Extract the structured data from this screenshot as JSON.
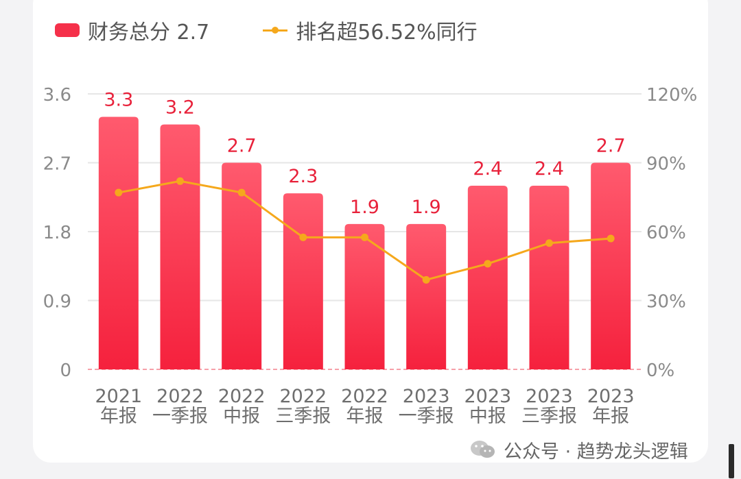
{
  "legend": {
    "bar_label": "财务总分 2.7",
    "line_label": "排名超56.52%同行"
  },
  "watermark": {
    "text": "公众号 · 趋势龙头逻辑",
    "icon": "wechat-icon"
  },
  "colors": {
    "bar_top": "#ff5a6e",
    "bar_bottom": "#f5213d",
    "line": "#f5a81c",
    "value_label": "#e8213a",
    "axis_text": "#8a8a8a",
    "grid": "#e6e6e6",
    "baseline": "#f6a0a8"
  },
  "chart_data": {
    "type": "bar",
    "categories": [
      [
        "2021",
        "年报"
      ],
      [
        "2022",
        "一季报"
      ],
      [
        "2022",
        "中报"
      ],
      [
        "2022",
        "三季报"
      ],
      [
        "2022",
        "年报"
      ],
      [
        "2023",
        "一季报"
      ],
      [
        "2023",
        "中报"
      ],
      [
        "2023",
        "三季报"
      ],
      [
        "2023",
        "年报"
      ]
    ],
    "series": [
      {
        "name": "财务总分",
        "type": "bar",
        "axis": "left",
        "values": [
          3.3,
          3.2,
          2.7,
          2.3,
          1.9,
          1.9,
          2.4,
          2.4,
          2.7
        ],
        "labels": [
          "3.3",
          "3.2",
          "2.7",
          "2.3",
          "1.9",
          "1.9",
          "2.4",
          "2.4",
          "2.7"
        ]
      },
      {
        "name": "排名",
        "type": "line",
        "axis": "right",
        "values": [
          77,
          82,
          77,
          57.5,
          57.5,
          39,
          46,
          55,
          57
        ]
      }
    ],
    "y_left": {
      "ticks": [
        "3.6",
        "2.7",
        "1.8",
        "0.9",
        "0"
      ],
      "lim": [
        0,
        3.6
      ]
    },
    "y_right": {
      "ticks": [
        "120%",
        "90%",
        "60%",
        "30%",
        "0%"
      ],
      "lim": [
        0,
        120
      ]
    },
    "grid": true,
    "legend_position": "top-left"
  }
}
